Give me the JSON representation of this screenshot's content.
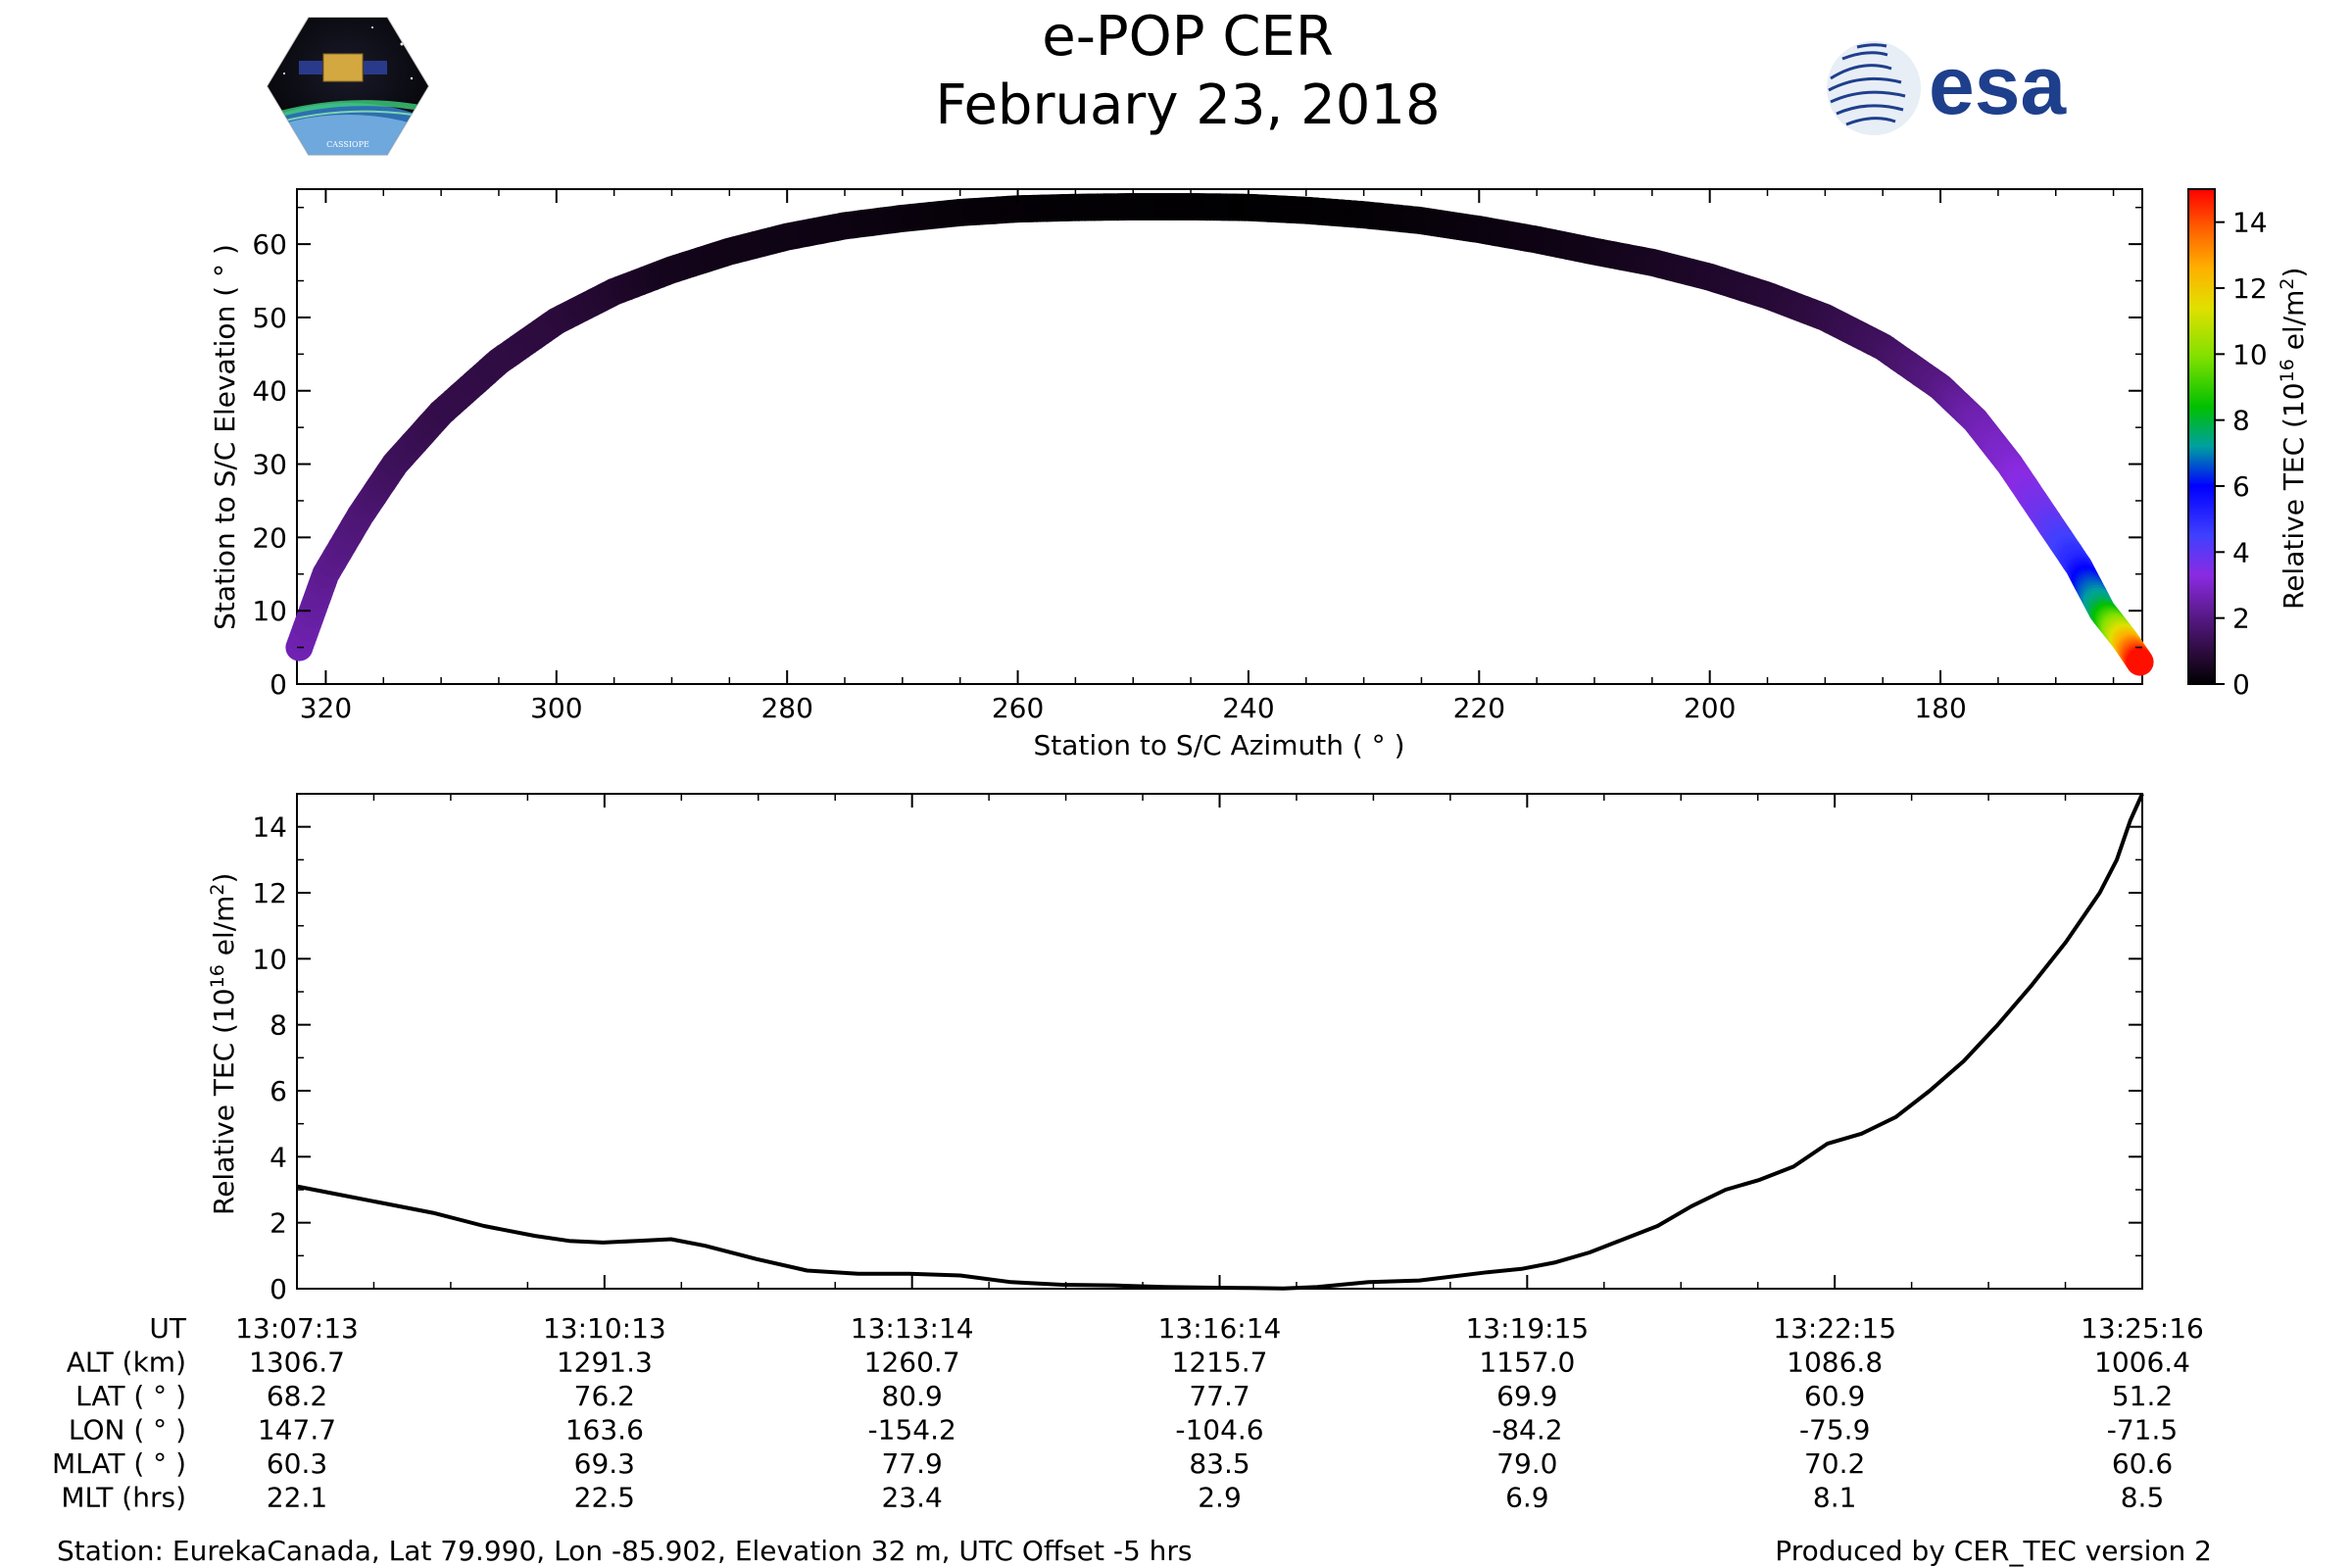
{
  "header": {
    "title": "e-POP CER",
    "date": "February 23, 2018",
    "esa_logo_text": "esa",
    "cassiope_logo_text": "CASSIOPE"
  },
  "colors": {
    "trace": "#000000",
    "colormap": [
      "#000000",
      "#2a0a3a",
      "#5a1a8a",
      "#8a2be2",
      "#4040ff",
      "#0000ff",
      "#00a0a0",
      "#00c000",
      "#80e000",
      "#e0e000",
      "#ffb000",
      "#ff6000",
      "#ff0000"
    ]
  },
  "chart_data": [
    {
      "type": "scatter",
      "xlabel": "Station to S/C Azimuth ( ° )",
      "ylabel": "Station to S/C Elevation ( ° )",
      "xlim": [
        322.5,
        162.5
      ],
      "ylim": [
        0,
        67.5
      ],
      "xticks": [
        320,
        300,
        280,
        260,
        240,
        220,
        200,
        180
      ],
      "yticks": [
        0,
        10,
        20,
        30,
        40,
        50,
        60
      ],
      "color_variable": "Relative TEC",
      "azimuth": [
        322.3,
        320,
        317,
        314,
        310,
        305,
        300,
        295,
        290,
        285,
        280,
        275,
        270,
        265,
        260,
        255,
        250,
        245,
        240,
        235,
        230,
        225,
        220,
        215,
        210,
        205,
        200,
        195,
        190,
        185,
        180,
        177,
        174,
        171,
        168,
        166,
        164,
        162.7
      ],
      "elevation": [
        5,
        15,
        23,
        30,
        37,
        44,
        49.5,
        53.5,
        56.5,
        59,
        61,
        62.5,
        63.5,
        64.3,
        64.8,
        65,
        65.1,
        65.1,
        65,
        64.6,
        64,
        63.2,
        62,
        60.6,
        59,
        57.5,
        55.5,
        53,
        50,
        46,
        40.5,
        36,
        30,
        23,
        16,
        10,
        6,
        3
      ],
      "tec": [
        3.1,
        2.6,
        2.2,
        1.8,
        1.5,
        1.4,
        1.3,
        1.0,
        0.6,
        0.5,
        0.45,
        0.4,
        0.3,
        0.2,
        0.15,
        0.1,
        0.08,
        0.05,
        0.03,
        0.05,
        0.1,
        0.2,
        0.3,
        0.4,
        0.5,
        0.7,
        0.9,
        1.1,
        1.4,
        1.8,
        2.4,
        3.0,
        3.5,
        4.2,
        5.5,
        8.0,
        11.5,
        14.8
      ]
    },
    {
      "type": "line",
      "ylabel": "Relative TEC (10^16 el/m^2)",
      "xlim": [
        0,
        1085
      ],
      "ylim": [
        0,
        15
      ],
      "yticks": [
        0,
        2,
        4,
        6,
        8,
        10,
        12,
        14
      ],
      "x": [
        0,
        20,
        50,
        80,
        110,
        140,
        160,
        180,
        200,
        220,
        240,
        270,
        300,
        330,
        360,
        390,
        420,
        450,
        480,
        510,
        540,
        560,
        580,
        600,
        630,
        660,
        700,
        720,
        740,
        760,
        780,
        800,
        820,
        840,
        860,
        880,
        900,
        920,
        940,
        960,
        980,
        1000,
        1020,
        1040,
        1060,
        1070,
        1078,
        1085
      ],
      "y": [
        3.1,
        2.9,
        2.6,
        2.3,
        1.9,
        1.6,
        1.45,
        1.4,
        1.45,
        1.5,
        1.3,
        0.9,
        0.55,
        0.45,
        0.45,
        0.4,
        0.2,
        0.12,
        0.1,
        0.05,
        0.03,
        0.02,
        0.01,
        0.05,
        0.2,
        0.25,
        0.5,
        0.6,
        0.8,
        1.1,
        1.5,
        1.9,
        2.5,
        3.0,
        3.3,
        3.7,
        4.4,
        4.7,
        5.2,
        6.0,
        6.9,
        8.0,
        9.2,
        10.5,
        12.0,
        13.0,
        14.2,
        15.0
      ]
    }
  ],
  "colorbar": {
    "label": "Relative TEC (10",
    "label_exp": "16",
    "label_end": " el/m",
    "label_exp2": "2",
    "label_close": ")",
    "ticks": [
      "0",
      "2",
      "4",
      "6",
      "8",
      "10",
      "12",
      "14"
    ]
  },
  "ylabel2": {
    "main": "Relative TEC (10",
    "exp": "16",
    "end": " el/m",
    "exp2": "2",
    "close": ")"
  },
  "table": {
    "row_labels": [
      "UT",
      "ALT (km)",
      "LAT ( ° )",
      "LON ( ° )",
      "MLAT ( ° )",
      "MLT (hrs)"
    ],
    "columns": [
      [
        "13:07:13",
        "1306.7",
        "68.2",
        "147.7",
        "60.3",
        "22.1"
      ],
      [
        "13:10:13",
        "1291.3",
        "76.2",
        "163.6",
        "69.3",
        "22.5"
      ],
      [
        "13:13:14",
        "1260.7",
        "80.9",
        "-154.2",
        "77.9",
        "23.4"
      ],
      [
        "13:16:14",
        "1215.7",
        "77.7",
        "-104.6",
        "83.5",
        "2.9"
      ],
      [
        "13:19:15",
        "1157.0",
        "69.9",
        "-84.2",
        "79.0",
        "6.9"
      ],
      [
        "13:22:15",
        "1086.8",
        "60.9",
        "-75.9",
        "70.2",
        "8.1"
      ],
      [
        "13:25:16",
        "1006.4",
        "51.2",
        "-71.5",
        "60.6",
        "8.5"
      ]
    ]
  },
  "footer": {
    "station": "Station: EurekaCanada, Lat 79.990, Lon -85.902, Elevation 32 m, UTC Offset -5 hrs",
    "producer": "Produced by CER_TEC version 2"
  }
}
